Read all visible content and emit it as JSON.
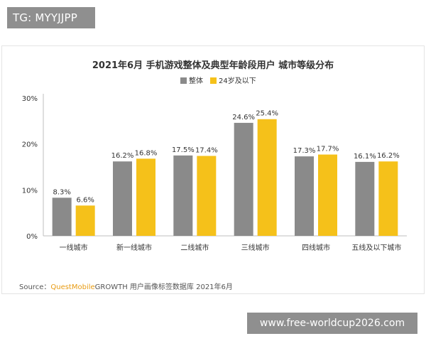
{
  "overlay": {
    "tg_badge": "TG: MYYJJPP",
    "watermark": "www.free-worldcup2026.com"
  },
  "source": {
    "prefix": "Source：",
    "brand": "QuestMobile",
    "rest": "GROWTH 用户画像标签数据库 2021年6月"
  },
  "colors": {
    "series_1": "#8a8a8a",
    "series_2": "#f5c11a",
    "axis": "#bfbfbf",
    "text": "#333333"
  },
  "chart_data": {
    "type": "bar",
    "title": "2021年6月 手机游戏整体及典型年龄段用户 城市等级分布",
    "categories": [
      "一线城市",
      "新一线城市",
      "二线城市",
      "三线城市",
      "四线城市",
      "五线及以下城市"
    ],
    "series": [
      {
        "name": "整体",
        "values": [
          8.3,
          16.2,
          17.5,
          24.6,
          17.3,
          16.1
        ],
        "labels": [
          "8.3%",
          "16.2%",
          "17.5%",
          "24.6%",
          "17.3%",
          "16.1%"
        ]
      },
      {
        "name": "24岁及以下",
        "values": [
          6.6,
          16.8,
          17.4,
          25.4,
          17.7,
          16.2
        ],
        "labels": [
          "6.6%",
          "16.8%",
          "17.4%",
          "25.4%",
          "17.7%",
          "16.2%"
        ]
      }
    ],
    "y_ticks": [
      "0%",
      "10%",
      "20%",
      "30%"
    ],
    "ylim": [
      0,
      30
    ],
    "legend_position": "top-center",
    "grid": false
  }
}
